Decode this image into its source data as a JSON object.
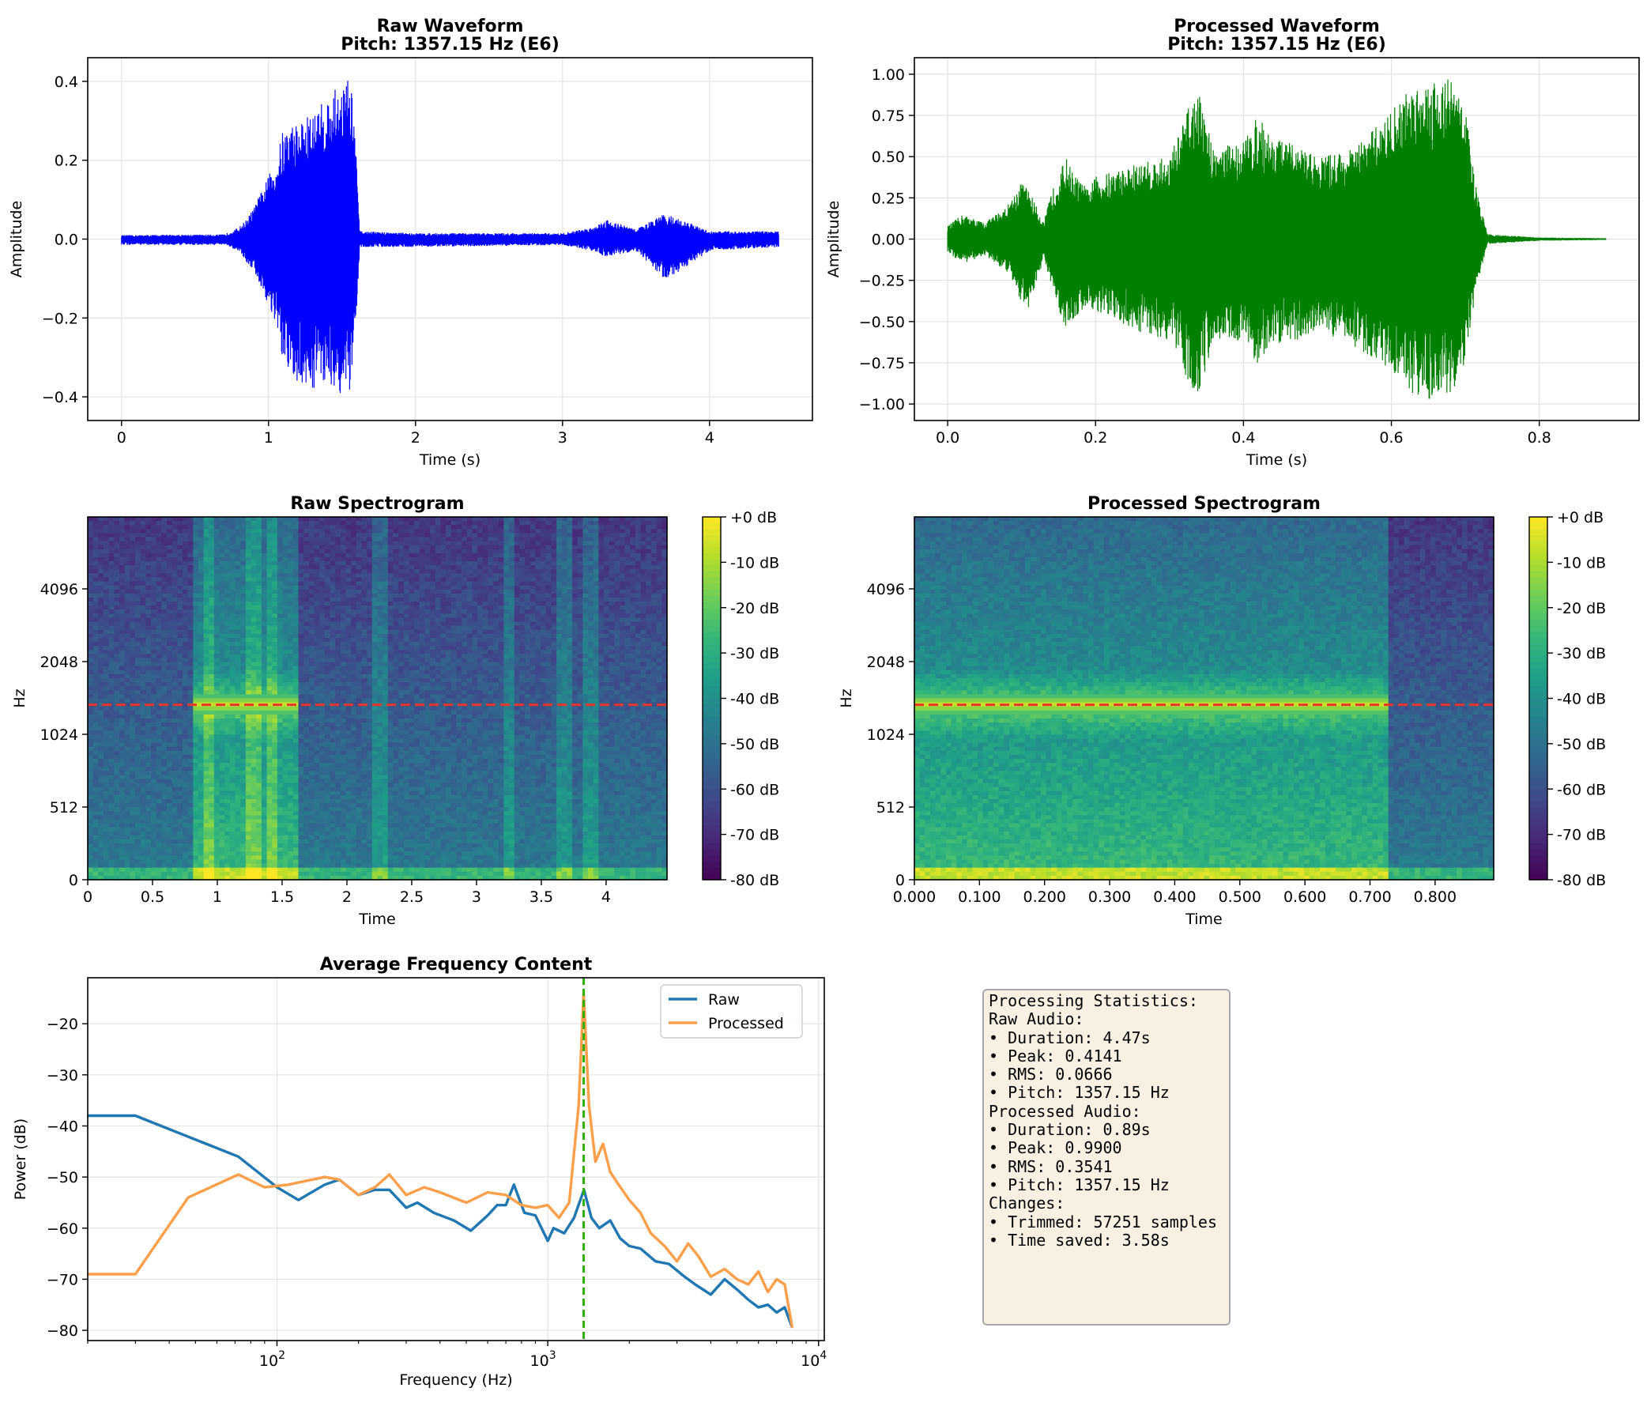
{
  "chart_data": [
    {
      "id": "raw_waveform",
      "type": "line",
      "title": "Raw Waveform\nPitch: 1357.15 Hz (E6)",
      "xlabel": "Time (s)",
      "ylabel": "Amplitude",
      "xlim": [
        -0.23,
        4.7
      ],
      "ylim": [
        -0.46,
        0.46
      ],
      "xticks": [
        0,
        1,
        2,
        3,
        4
      ],
      "yticks": [
        -0.4,
        -0.2,
        0.0,
        0.2,
        0.4
      ],
      "color": "#0000ff",
      "duration_s": 4.47,
      "envelope": {
        "x": [
          0,
          0.7,
          0.8,
          0.85,
          0.9,
          1.0,
          1.05,
          1.1,
          1.2,
          1.3,
          1.4,
          1.5,
          1.55,
          1.58,
          1.62,
          2.0,
          3.0,
          3.2,
          3.3,
          3.5,
          3.7,
          4.0,
          4.47
        ],
        "top": [
          0.01,
          0.012,
          0.03,
          0.05,
          0.08,
          0.16,
          0.2,
          0.28,
          0.3,
          0.32,
          0.36,
          0.4,
          0.41,
          0.35,
          0.02,
          0.015,
          0.015,
          0.03,
          0.05,
          0.025,
          0.065,
          0.02,
          0.02
        ],
        "bottom": [
          -0.015,
          -0.015,
          -0.03,
          -0.06,
          -0.08,
          -0.17,
          -0.22,
          -0.33,
          -0.37,
          -0.38,
          -0.36,
          -0.4,
          -0.41,
          -0.33,
          -0.02,
          -0.02,
          -0.015,
          -0.03,
          -0.045,
          -0.03,
          -0.105,
          -0.03,
          -0.02
        ]
      }
    },
    {
      "id": "processed_waveform",
      "type": "line",
      "title": "Processed Waveform\nPitch: 1357.15 Hz (E6)",
      "xlabel": "Time (s)",
      "ylabel": "Amplitude",
      "xlim": [
        -0.045,
        0.935
      ],
      "ylim": [
        -1.1,
        1.1
      ],
      "xticks": [
        0.0,
        0.2,
        0.4,
        0.6,
        0.8
      ],
      "yticks": [
        -1.0,
        -0.75,
        -0.5,
        -0.25,
        0.0,
        0.25,
        0.5,
        0.75,
        1.0
      ],
      "color": "#008000",
      "duration_s": 0.89,
      "envelope": {
        "x": [
          0,
          0.02,
          0.05,
          0.08,
          0.1,
          0.11,
          0.13,
          0.14,
          0.16,
          0.17,
          0.19,
          0.2,
          0.25,
          0.3,
          0.33,
          0.34,
          0.36,
          0.4,
          0.42,
          0.44,
          0.48,
          0.5,
          0.55,
          0.6,
          0.63,
          0.65,
          0.68,
          0.7,
          0.715,
          0.73,
          0.8,
          0.89
        ],
        "top": [
          0.08,
          0.15,
          0.1,
          0.2,
          0.35,
          0.3,
          0.1,
          0.28,
          0.5,
          0.4,
          0.3,
          0.38,
          0.45,
          0.5,
          0.85,
          0.88,
          0.55,
          0.6,
          0.75,
          0.62,
          0.55,
          0.5,
          0.55,
          0.78,
          0.95,
          0.97,
          0.98,
          0.8,
          0.3,
          0.03,
          0.01,
          0.005
        ],
        "bottom": [
          -0.08,
          -0.15,
          -0.1,
          -0.2,
          -0.38,
          -0.42,
          -0.12,
          -0.3,
          -0.55,
          -0.5,
          -0.4,
          -0.45,
          -0.55,
          -0.62,
          -0.9,
          -0.95,
          -0.6,
          -0.62,
          -0.77,
          -0.65,
          -0.6,
          -0.55,
          -0.65,
          -0.8,
          -0.94,
          -0.97,
          -0.95,
          -0.75,
          -0.3,
          -0.03,
          -0.01,
          -0.005
        ]
      }
    },
    {
      "id": "raw_spectrogram",
      "type": "heatmap",
      "title": "Raw Spectrogram",
      "xlabel": "Time",
      "ylabel": "Hz",
      "xlim": [
        0,
        4.47
      ],
      "xticks": [
        0,
        0.5,
        1,
        1.5,
        2,
        2.5,
        3,
        3.5,
        4
      ],
      "xtick_labels": [
        "0",
        "0.5",
        "1",
        "1.5",
        "2",
        "2.5",
        "3",
        "3.5",
        "4"
      ],
      "yticks": [
        0,
        512,
        1024,
        2048,
        4096
      ],
      "y_scale": "symlog",
      "pitch_line_hz": 1357.15,
      "colorbar": {
        "range_db": [
          -80,
          0
        ],
        "ticks": [
          "+0 dB",
          "-10 dB",
          "-20 dB",
          "-30 dB",
          "-40 dB",
          "-50 dB",
          "-60 dB",
          "-70 dB",
          "-80 dB"
        ]
      },
      "colormap": [
        "#440154",
        "#482878",
        "#3e4989",
        "#31688e",
        "#26828e",
        "#1f9e89",
        "#35b779",
        "#6ece58",
        "#b5de2b",
        "#fde725"
      ],
      "active_regions_s": [
        [
          0.82,
          1.62
        ]
      ],
      "transients_s": [
        0.93,
        1.28,
        1.42,
        2.25,
        3.25,
        3.68,
        3.88
      ]
    },
    {
      "id": "processed_spectrogram",
      "type": "heatmap",
      "title": "Processed Spectrogram",
      "xlabel": "Time",
      "ylabel": "Hz",
      "xlim": [
        0,
        0.89
      ],
      "xticks": [
        0,
        0.1,
        0.2,
        0.3,
        0.4,
        0.5,
        0.6,
        0.7,
        0.8
      ],
      "xtick_labels": [
        "0.000",
        "0.100",
        "0.200",
        "0.300",
        "0.400",
        "0.500",
        "0.600",
        "0.700",
        "0.800"
      ],
      "yticks": [
        0,
        512,
        1024,
        2048,
        4096
      ],
      "y_scale": "symlog",
      "pitch_line_hz": 1357.15,
      "colorbar": {
        "range_db": [
          -80,
          0
        ],
        "ticks": [
          "+0 dB",
          "-10 dB",
          "-20 dB",
          "-30 dB",
          "-40 dB",
          "-50 dB",
          "-60 dB",
          "-70 dB",
          "-80 dB"
        ]
      },
      "colormap": [
        "#440154",
        "#482878",
        "#3e4989",
        "#31688e",
        "#26828e",
        "#1f9e89",
        "#35b779",
        "#6ece58",
        "#b5de2b",
        "#fde725"
      ],
      "active_regions_s": [
        [
          0,
          0.73
        ]
      ],
      "transients_s": []
    },
    {
      "id": "avg_frequency",
      "type": "line",
      "title": "Average Frequency Content",
      "xlabel": "Frequency (Hz)",
      "ylabel": "Power (dB)",
      "x_scale": "log",
      "xlim": [
        20,
        10500
      ],
      "ylim": [
        -82,
        -11
      ],
      "xticks": [
        100,
        1000,
        10000
      ],
      "xtick_labels": [
        "10^2",
        "10^3",
        "10^4"
      ],
      "yticks": [
        -80,
        -70,
        -60,
        -50,
        -40,
        -30,
        -20
      ],
      "legend": "top-right",
      "vline_hz": 1357.15,
      "vline_color": "#2db000",
      "series": [
        {
          "name": "Raw",
          "color": "#1f77b4",
          "x": [
            20,
            30,
            72,
            100,
            120,
            150,
            170,
            200,
            230,
            260,
            300,
            330,
            380,
            450,
            520,
            600,
            650,
            700,
            750,
            820,
            900,
            1000,
            1050,
            1150,
            1250,
            1360,
            1450,
            1550,
            1700,
            1850,
            2000,
            2200,
            2500,
            2800,
            3200,
            3500,
            4000,
            4500,
            5000,
            5500,
            6000,
            6500,
            7000,
            7500,
            8000
          ],
          "y": [
            -38,
            -38,
            -46,
            -52,
            -54.5,
            -51.5,
            -50.5,
            -53.5,
            -52.5,
            -52.5,
            -56,
            -55,
            -57,
            -58.5,
            -60.5,
            -57.5,
            -55.5,
            -55.5,
            -51.5,
            -57,
            -57.5,
            -62.5,
            -60,
            -61,
            -58,
            -52.5,
            -58,
            -60,
            -58.5,
            -62,
            -63.5,
            -64,
            -66.5,
            -67,
            -69.5,
            -71,
            -73,
            -70,
            -72,
            -74,
            -75.5,
            -75,
            -76.5,
            -75.5,
            -79.5
          ]
        },
        {
          "name": "Processed",
          "color": "#ff9f4a",
          "x": [
            20,
            30,
            47,
            72,
            90,
            110,
            150,
            170,
            200,
            230,
            260,
            300,
            350,
            400,
            500,
            600,
            700,
            800,
            900,
            1000,
            1100,
            1200,
            1300,
            1357,
            1420,
            1500,
            1600,
            1700,
            1800,
            2000,
            2200,
            2400,
            2700,
            3000,
            3300,
            3600,
            4000,
            4500,
            5000,
            5500,
            6000,
            6500,
            7000,
            7500,
            8000
          ],
          "y": [
            -69,
            -69,
            -54,
            -49.5,
            -52,
            -51.5,
            -50,
            -50.5,
            -53.5,
            -52,
            -49.5,
            -53.5,
            -52,
            -53,
            -55,
            -53,
            -53.5,
            -55.5,
            -56,
            -55.5,
            -58,
            -55,
            -36,
            -14,
            -36,
            -47,
            -43.5,
            -49,
            -51,
            -54.5,
            -57,
            -61,
            -63.5,
            -66.5,
            -63,
            -65.5,
            -69.5,
            -68,
            -70,
            -71,
            -68.5,
            -72.5,
            -70,
            -71,
            -79.5
          ]
        }
      ]
    }
  ],
  "stats": {
    "lines": [
      "Processing Statistics:",
      "",
      "Raw Audio:",
      "• Duration: 4.47s",
      "• Peak: 0.4141",
      "• RMS: 0.0666",
      "• Pitch: 1357.15 Hz",
      "",
      "Processed Audio:",
      "• Duration: 0.89s",
      "• Peak: 0.9900",
      "• RMS: 0.3541",
      "• Pitch: 1357.15 Hz",
      "",
      "Changes:",
      "• Trimmed: 57251 samples",
      "• Time saved: 3.58s"
    ]
  }
}
